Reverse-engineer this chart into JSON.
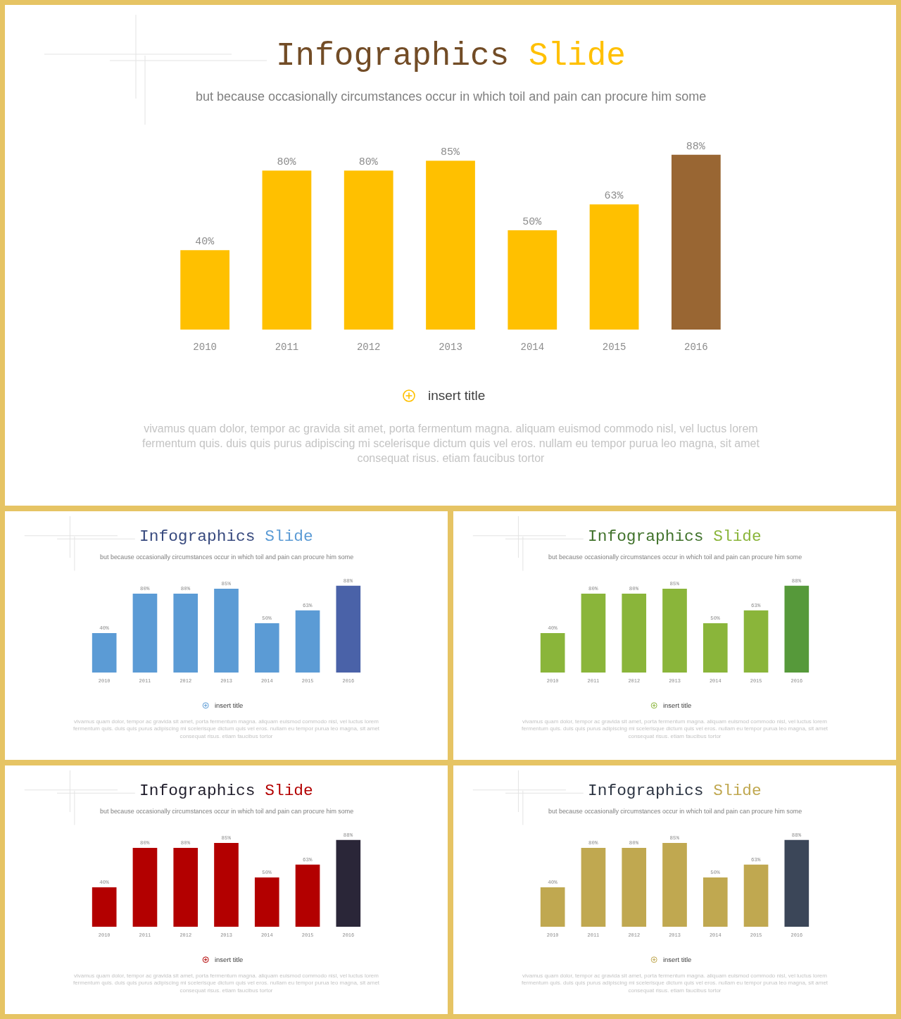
{
  "chart_data": [
    {
      "type": "bar",
      "title": "Infographics Slide",
      "subtitle": "but because occasionally circumstances occur in which toil and pain can procure him some",
      "categories": [
        "2010",
        "2011",
        "2012",
        "2013",
        "2014",
        "2015",
        "2016"
      ],
      "values": [
        40,
        80,
        80,
        85,
        50,
        63,
        88
      ],
      "colors": [
        "#ffc000",
        "#ffc000",
        "#ffc000",
        "#ffc000",
        "#ffc000",
        "#ffc000",
        "#996633"
      ],
      "value_labels": [
        "40%",
        "80%",
        "80%",
        "85%",
        "50%",
        "63%",
        "88%"
      ],
      "annotations": [
        "insert title",
        "vivamus quam dolor, tempor ac gravida sit amet, porta fermentum magna. aliquam euismod commodo nisl, vel luctus lorem\nfermentum quis. duis quis purus adipiscing mi scelerisque dictum quis vel eros. nullam eu tempor purua leo magna, sit amet\nconsequat risus. etiam faucibus tortor"
      ]
    },
    {
      "type": "bar",
      "title": "Infographics Slide",
      "subtitle": "but because occasionally circumstances occur in which toil and pain can procure him some",
      "categories": [
        "2010",
        "2011",
        "2012",
        "2013",
        "2014",
        "2015",
        "2016"
      ],
      "values": [
        40,
        80,
        80,
        85,
        50,
        63,
        88
      ],
      "colors": [
        "#5b9bd5",
        "#5b9bd5",
        "#5b9bd5",
        "#5b9bd5",
        "#5b9bd5",
        "#5b9bd5",
        "#4a62a8"
      ],
      "value_labels": [
        "40%",
        "80%",
        "80%",
        "85%",
        "50%",
        "63%",
        "88%"
      ],
      "annotations": [
        "insert title",
        "vivamus quam dolor, tempor ac gravida sit amet, porta fermentum magna. aliquam euismod commodo nisl, vel luctus lorem\nfermentum quis. duis quis purus adipiscing mi scelerisque dictum quis vel eros. nullam eu tempor purua leo magna, sit amet\nconsequat risus. etiam faucibus tortor"
      ]
    },
    {
      "type": "bar",
      "title": "Infographics Slide",
      "subtitle": "but because occasionally circumstances occur in which toil and pain can procure him some",
      "categories": [
        "2010",
        "2011",
        "2012",
        "2013",
        "2014",
        "2015",
        "2016"
      ],
      "values": [
        40,
        80,
        80,
        85,
        50,
        63,
        88
      ],
      "colors": [
        "#8ab53a",
        "#8ab53a",
        "#8ab53a",
        "#8ab53a",
        "#8ab53a",
        "#8ab53a",
        "#56993a"
      ],
      "value_labels": [
        "40%",
        "80%",
        "80%",
        "85%",
        "50%",
        "63%",
        "88%"
      ],
      "annotations": [
        "insert title",
        "vivamus quam dolor, tempor ac gravida sit amet, porta fermentum magna. aliquam euismod commodo nisl, vel luctus lorem\nfermentum quis. duis quis purus adipiscing mi scelerisque dictum quis vel eros. nullam eu tempor purua leo magna, sit amet\nconsequat risus. etiam faucibus tortor"
      ]
    },
    {
      "type": "bar",
      "title": "Infographics Slide",
      "subtitle": "but because occasionally circumstances occur in which toil and pain can procure him some",
      "categories": [
        "2010",
        "2011",
        "2012",
        "2013",
        "2014",
        "2015",
        "2016"
      ],
      "values": [
        40,
        80,
        80,
        85,
        50,
        63,
        88
      ],
      "colors": [
        "#b30000",
        "#b30000",
        "#b30000",
        "#b30000",
        "#b30000",
        "#b30000",
        "#2a2638"
      ],
      "value_labels": [
        "40%",
        "80%",
        "80%",
        "85%",
        "50%",
        "63%",
        "88%"
      ],
      "annotations": [
        "insert title",
        "vivamus quam dolor, tempor ac gravida sit amet, porta fermentum magna. aliquam euismod commodo nisl, vel luctus lorem\nfermentum quis. duis quis purus adipiscing mi scelerisque dictum quis vel eros. nullam eu tempor purua leo magna, sit amet\nconsequat risus. etiam faucibus tortor"
      ]
    },
    {
      "type": "bar",
      "title": "Infographics Slide",
      "subtitle": "but because occasionally circumstances occur in which toil and pain can procure him some",
      "categories": [
        "2010",
        "2011",
        "2012",
        "2013",
        "2014",
        "2015",
        "2016"
      ],
      "values": [
        40,
        80,
        80,
        85,
        50,
        63,
        88
      ],
      "colors": [
        "#c0a850",
        "#c0a850",
        "#c0a850",
        "#c0a850",
        "#c0a850",
        "#c0a850",
        "#3b4658"
      ],
      "value_labels": [
        "40%",
        "80%",
        "80%",
        "85%",
        "50%",
        "63%",
        "88%"
      ],
      "annotations": [
        "insert title",
        "vivamus quam dolor, tempor ac gravida sit amet, porta fermentum magna. aliquam euismod commodo nisl, vel luctus lorem\nfermentum quis. duis quis purus adipiscing mi scelerisque dictum quis vel eros. nullam eu tempor purua leo magna, sit amet\nconsequat risus. etiam faucibus tortor"
      ]
    }
  ]
}
